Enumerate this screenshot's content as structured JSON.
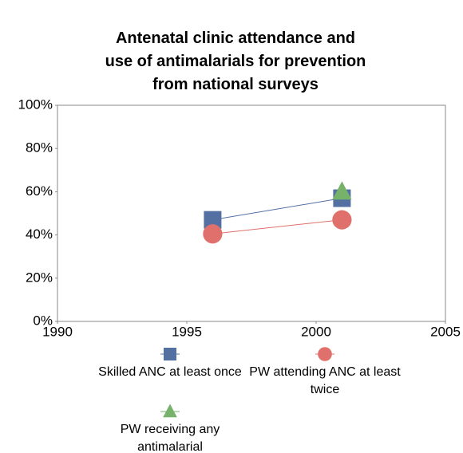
{
  "chart_data": {
    "type": "line",
    "title": "Antenatal clinic attendance and\nuse of antimalarials for prevention\nfrom national surveys",
    "x": [
      1996,
      2001
    ],
    "series": [
      {
        "name": "Skilled ANC at least once",
        "color": "#5470a3",
        "marker": "square",
        "values": [
          47,
          57
        ]
      },
      {
        "name": "PW attending ANC at least twice",
        "color": "#e0706c",
        "marker": "circle",
        "values": [
          40.5,
          47
        ]
      },
      {
        "name": "PW receiving any antimalarial",
        "color": "#77b26b",
        "marker": "triangle",
        "values": [
          null,
          60
        ]
      }
    ],
    "xlim": [
      1990,
      2005
    ],
    "xticks": [
      1990,
      1995,
      2000,
      2005
    ],
    "ylim": [
      0,
      100
    ],
    "yticks": [
      {
        "value": 0,
        "label": "0%"
      },
      {
        "value": 20,
        "label": "20%"
      },
      {
        "value": 40,
        "label": "40%"
      },
      {
        "value": 60,
        "label": "60%"
      },
      {
        "value": 80,
        "label": "80%"
      },
      {
        "value": 100,
        "label": "100%"
      }
    ],
    "grid": false,
    "legend": "bottom"
  }
}
